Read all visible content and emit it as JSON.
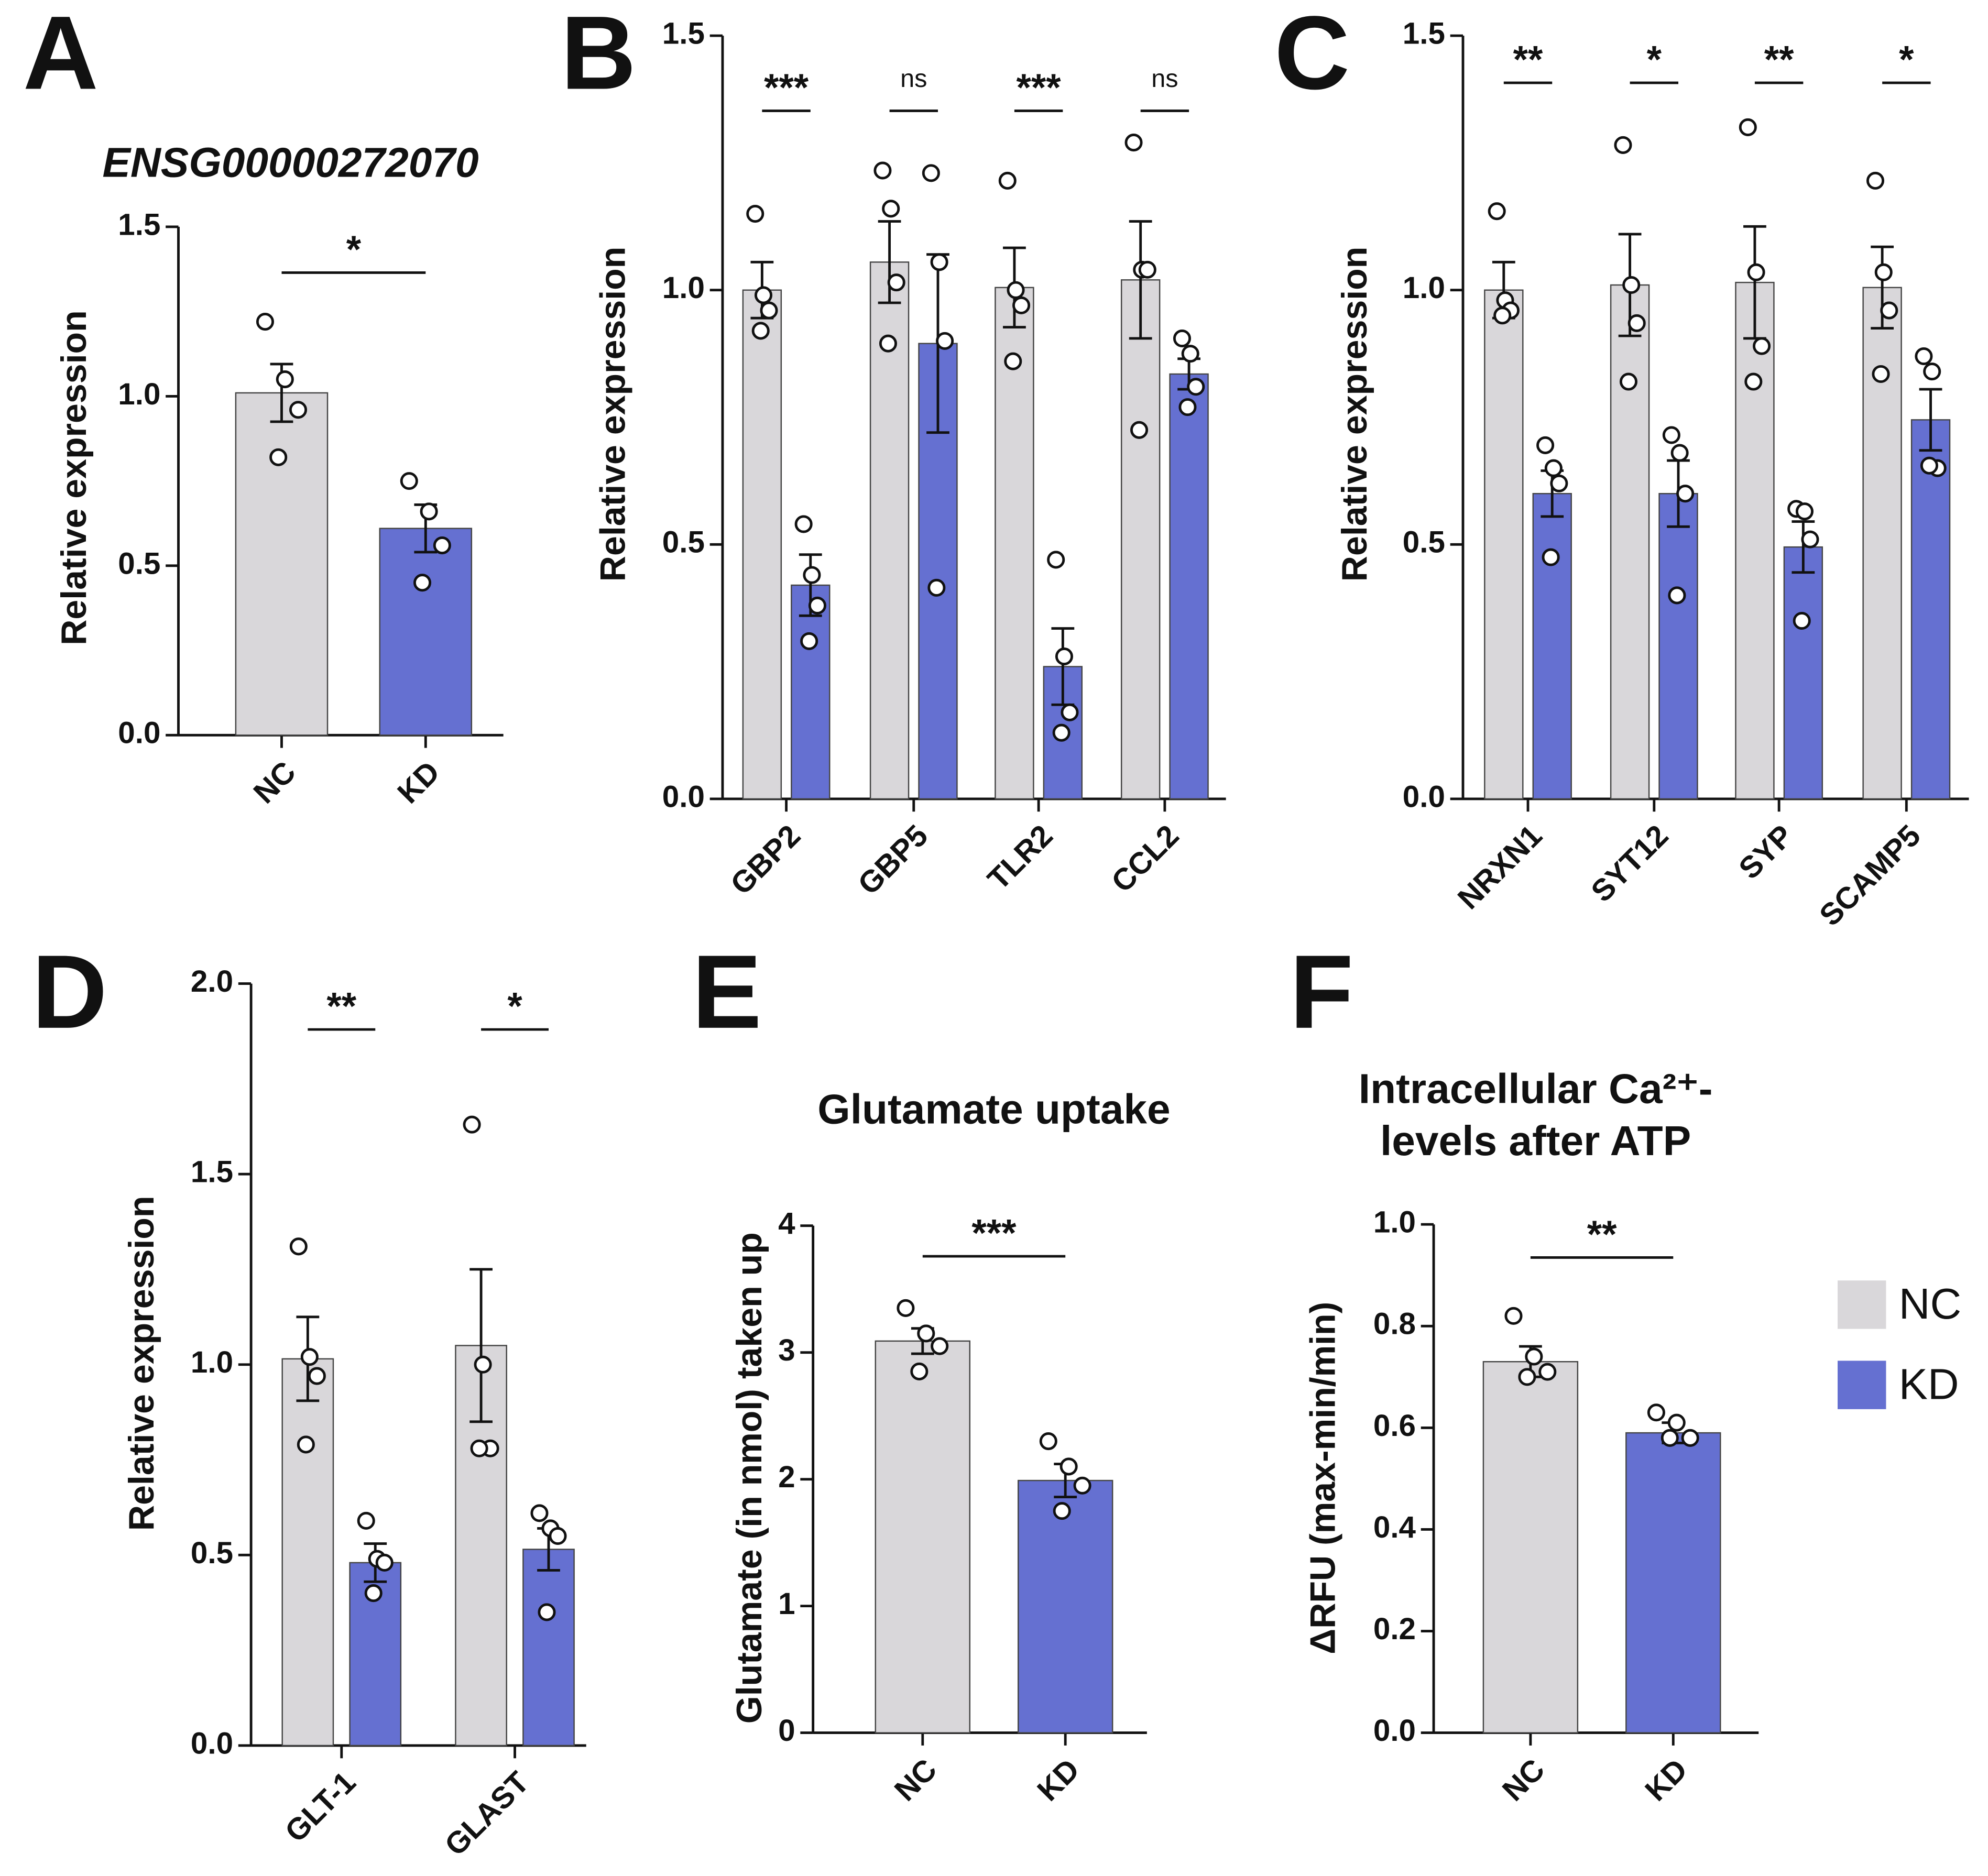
{
  "chart_data": [
    {
      "type": "bar",
      "panel": "A",
      "title": [
        "ENSG00000272070"
      ],
      "ylabel": "Relative expression",
      "categories": [
        "NC",
        "KD"
      ],
      "colors": [
        "#d9d7da",
        "#6570d1"
      ],
      "values": [
        1.01,
        0.61
      ],
      "errors": [
        0.085,
        0.07
      ],
      "points": [
        [
          1.22,
          1.05,
          0.96,
          0.82
        ],
        [
          0.75,
          0.66,
          0.56,
          0.45
        ]
      ],
      "significance": [
        "*"
      ],
      "ylim": [
        0,
        1.5
      ],
      "yticks": [
        {
          "value": 0,
          "label": "0.0"
        },
        {
          "value": 0.5,
          "label": "0.5"
        },
        {
          "value": 1,
          "label": "1.0"
        },
        {
          "value": 1.5,
          "label": "1.5"
        }
      ]
    },
    {
      "type": "grouped_bar",
      "panel": "B",
      "ylabel": "Relative expression",
      "categories": [
        "GBP2",
        "GBP5",
        "TLR2",
        "CCL2"
      ],
      "series": [
        {
          "color": "#d9d7da",
          "values": [
            1.0,
            1.055,
            1.005,
            1.02
          ],
          "errors": [
            0.055,
            0.08,
            0.078,
            0.115
          ],
          "points": [
            [
              1.15,
              0.99,
              0.96,
              0.92
            ],
            [
              1.235,
              1.16,
              1.015,
              0.895
            ],
            [
              1.215,
              1.0,
              0.97,
              0.86
            ],
            [
              1.29,
              1.04,
              1.04,
              0.725
            ]
          ]
        },
        {
          "color": "#6570d1",
          "values": [
            0.42,
            0.895,
            0.26,
            0.835
          ],
          "errors": [
            0.06,
            0.175,
            0.075,
            0.03
          ],
          "points": [
            [
              0.54,
              0.44,
              0.38,
              0.31
            ],
            [
              1.23,
              1.055,
              0.9,
              0.415
            ],
            [
              0.47,
              0.28,
              0.17,
              0.13
            ],
            [
              0.905,
              0.875,
              0.81,
              0.77
            ]
          ]
        }
      ],
      "significance": [
        "***",
        "ns",
        "***",
        "ns"
      ],
      "ylim": [
        0,
        1.5
      ],
      "yticks": [
        {
          "value": 0,
          "label": "0.0"
        },
        {
          "value": 0.5,
          "label": "0.5"
        },
        {
          "value": 1,
          "label": "1.0"
        },
        {
          "value": 1.5,
          "label": "1.5"
        }
      ]
    },
    {
      "type": "grouped_bar",
      "panel": "C",
      "ylabel": "Relative expression",
      "categories": [
        "NRXN1",
        "SYT12",
        "SYP",
        "SCAMP5"
      ],
      "series": [
        {
          "color": "#d9d7da",
          "values": [
            1.0,
            1.01,
            1.015,
            1.005
          ],
          "errors": [
            0.055,
            0.1,
            0.11,
            0.08
          ],
          "points": [
            [
              1.155,
              0.98,
              0.96,
              0.95
            ],
            [
              1.285,
              1.01,
              0.935,
              0.82
            ],
            [
              1.32,
              1.035,
              0.89,
              0.82
            ],
            [
              1.215,
              1.035,
              0.96,
              0.835
            ]
          ]
        },
        {
          "color": "#6570d1",
          "values": [
            0.6,
            0.6,
            0.495,
            0.745
          ],
          "errors": [
            0.045,
            0.065,
            0.05,
            0.06
          ],
          "points": [
            [
              0.695,
              0.65,
              0.62,
              0.475
            ],
            [
              0.715,
              0.68,
              0.6,
              0.4
            ],
            [
              0.57,
              0.565,
              0.51,
              0.35
            ],
            [
              0.87,
              0.84,
              0.65,
              0.655
            ]
          ]
        }
      ],
      "significance": [
        "**",
        "*",
        "**",
        "*"
      ],
      "ylim": [
        0,
        1.5
      ],
      "yticks": [
        {
          "value": 0,
          "label": "0.0"
        },
        {
          "value": 0.5,
          "label": "0.5"
        },
        {
          "value": 1,
          "label": "1.0"
        },
        {
          "value": 1.5,
          "label": "1.5"
        }
      ]
    },
    {
      "type": "grouped_bar",
      "panel": "D",
      "ylabel": "Relative expression",
      "categories": [
        "GLT-1",
        "GLAST"
      ],
      "series": [
        {
          "color": "#d9d7da",
          "values": [
            1.015,
            1.05
          ],
          "errors": [
            0.11,
            0.2
          ],
          "points": [
            [
              1.31,
              1.02,
              0.97,
              0.79
            ],
            [
              1.63,
              1.0,
              0.78,
              0.78
            ]
          ]
        },
        {
          "color": "#6570d1",
          "values": [
            0.48,
            0.515
          ],
          "errors": [
            0.05,
            0.055
          ],
          "points": [
            [
              0.59,
              0.49,
              0.48,
              0.4
            ],
            [
              0.61,
              0.57,
              0.55,
              0.35
            ]
          ]
        }
      ],
      "significance": [
        "**",
        "*"
      ],
      "ylim": [
        0,
        2
      ],
      "yticks": [
        {
          "value": 0,
          "label": "0.0"
        },
        {
          "value": 0.5,
          "label": "0.5"
        },
        {
          "value": 1,
          "label": "1.0"
        },
        {
          "value": 1.5,
          "label": "1.5"
        },
        {
          "value": 2,
          "label": "2.0"
        }
      ]
    },
    {
      "type": "bar",
      "panel": "E",
      "title": [
        "Glutamate uptake"
      ],
      "ylabel": "Glutamate (in nmol) taken up",
      "categories": [
        "NC",
        "KD"
      ],
      "colors": [
        "#d9d7da",
        "#6570d1"
      ],
      "values": [
        3.09,
        1.99
      ],
      "errors": [
        0.1,
        0.13
      ],
      "points": [
        [
          3.35,
          3.15,
          3.05,
          2.85
        ],
        [
          2.3,
          2.1,
          1.95,
          1.75
        ]
      ],
      "significance": [
        "***"
      ],
      "ylim": [
        0,
        4
      ],
      "yticks": [
        0,
        1,
        2,
        3,
        4
      ]
    },
    {
      "type": "bar",
      "panel": "F",
      "title": [
        "Intracellular Ca²⁺-",
        "levels after ATP"
      ],
      "ylabel": "ΔRFU (max-min/min)",
      "categories": [
        "NC",
        "KD"
      ],
      "colors": [
        "#d9d7da",
        "#6570d1"
      ],
      "values": [
        0.73,
        0.59
      ],
      "errors": [
        0.03,
        0.02
      ],
      "points": [
        [
          0.82,
          0.74,
          0.71,
          0.7
        ],
        [
          0.63,
          0.61,
          0.58,
          0.58
        ]
      ],
      "significance": [
        "**"
      ],
      "ylim": [
        0,
        1
      ],
      "yticks": [
        {
          "value": 0,
          "label": "0.0"
        },
        {
          "value": 0.2,
          "label": "0.2"
        },
        {
          "value": 0.4,
          "label": "0.4"
        },
        {
          "value": 0.6,
          "label": "0.6"
        },
        {
          "value": 0.8,
          "label": "0.8"
        },
        {
          "value": 1,
          "label": "1.0"
        }
      ]
    }
  ],
  "legend": [
    {
      "name": "NC",
      "color": "#d9d7da"
    },
    {
      "name": "KD",
      "color": "#6570d1"
    }
  ]
}
